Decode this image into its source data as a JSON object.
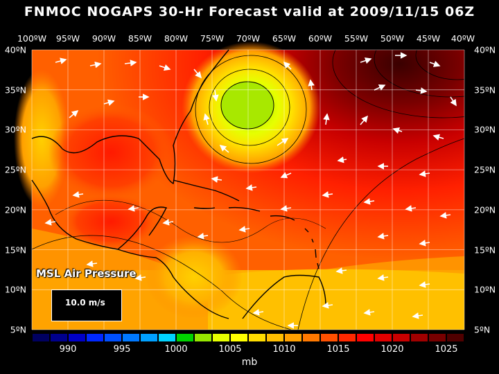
{
  "title": "FNMOC NOGAPS 30-Hr Forecast valid at 2009/11/15 06Z",
  "map": {
    "longitude_labels": [
      "100ºW",
      "95ºW",
      "90ºW",
      "85ºW",
      "80ºW",
      "75ºW",
      "70ºW",
      "65ºW",
      "60ºW",
      "55ºW",
      "50ºW",
      "45ºW",
      "40ºW"
    ],
    "latitude_labels": [
      "40ºN",
      "35ºN",
      "30ºN",
      "25ºN",
      "20ºN",
      "15ºN",
      "10ºN",
      "5ºN"
    ],
    "field_label": "MSL Air Pressure",
    "vector_legend": "10.0 m/s"
  },
  "scale": {
    "labels": [
      "990",
      "995",
      "1000",
      "1005",
      "1010",
      "1015",
      "1020",
      "1025"
    ],
    "units": "mb",
    "colors": [
      "#000060",
      "#00008c",
      "#0000c8",
      "#0028ff",
      "#0050ff",
      "#0078ff",
      "#00a0ff",
      "#00d2ff",
      "#00d200",
      "#96e600",
      "#e6ff00",
      "#ffff00",
      "#ffdc00",
      "#ffbe00",
      "#ffa000",
      "#ff7800",
      "#ff5000",
      "#ff2800",
      "#ff0000",
      "#e10000",
      "#c80000",
      "#a00000",
      "#780000",
      "#500000"
    ]
  }
}
